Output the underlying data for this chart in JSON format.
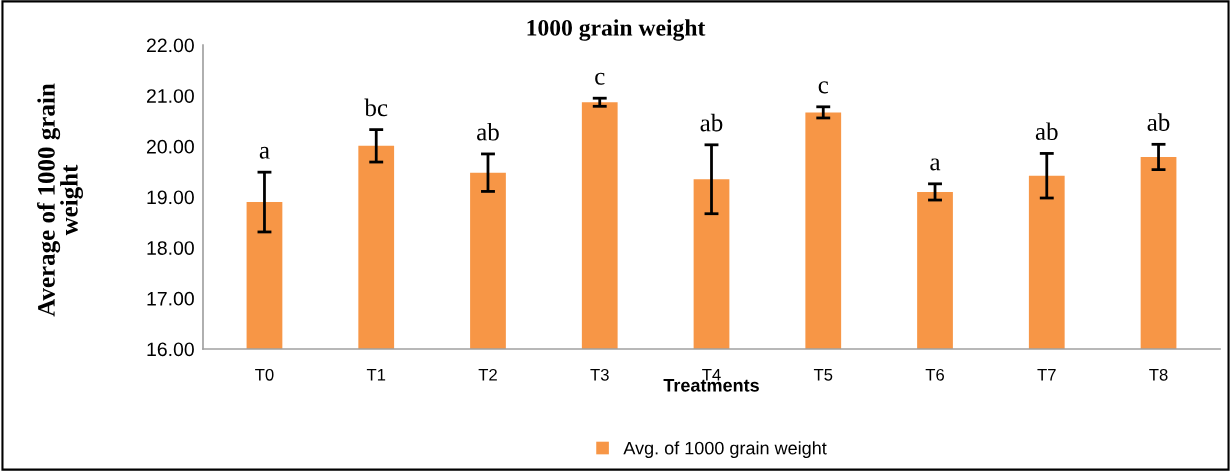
{
  "chart_data": {
    "type": "bar",
    "title": "1000 grain weight",
    "xlabel": "Treatments",
    "ylabel": "Average of 1000 grain\nweight",
    "categories": [
      "T0",
      "T1",
      "T2",
      "T3",
      "T4",
      "T5",
      "T6",
      "T7",
      "T8"
    ],
    "series": [
      {
        "name": "Avg. of 1000 grain weight",
        "color": "#f79646",
        "values": [
          18.9,
          20.01,
          19.48,
          20.87,
          19.35,
          20.67,
          19.1,
          19.42,
          19.79
        ],
        "errors": [
          0.59,
          0.32,
          0.37,
          0.08,
          0.68,
          0.11,
          0.16,
          0.44,
          0.25
        ]
      }
    ],
    "ylim": [
      16,
      22
    ],
    "yticks": [
      {
        "value": 16,
        "label": "16.00"
      },
      {
        "value": 17,
        "label": "17.00"
      },
      {
        "value": 18,
        "label": "18.00"
      },
      {
        "value": 19,
        "label": "19.00"
      },
      {
        "value": 20,
        "label": "20.00"
      },
      {
        "value": 21,
        "label": "21.00"
      },
      {
        "value": 22,
        "label": "22.00"
      }
    ],
    "annotations": [
      {
        "text": "a",
        "x": "T0",
        "y": 19.49
      },
      {
        "text": "bc",
        "x": "T1",
        "y": 20.33
      },
      {
        "text": "ab",
        "x": "T2",
        "y": 19.85
      },
      {
        "text": "c",
        "x": "T3",
        "y": 20.95
      },
      {
        "text": "ab",
        "x": "T4",
        "y": 20.03
      },
      {
        "text": "c",
        "x": "T5",
        "y": 20.78
      },
      {
        "text": "a",
        "x": "T6",
        "y": 19.26
      },
      {
        "text": "ab",
        "x": "T7",
        "y": 19.86
      },
      {
        "text": "ab",
        "x": "T8",
        "y": 20.04
      }
    ],
    "grid": false,
    "legend": "bottom"
  }
}
